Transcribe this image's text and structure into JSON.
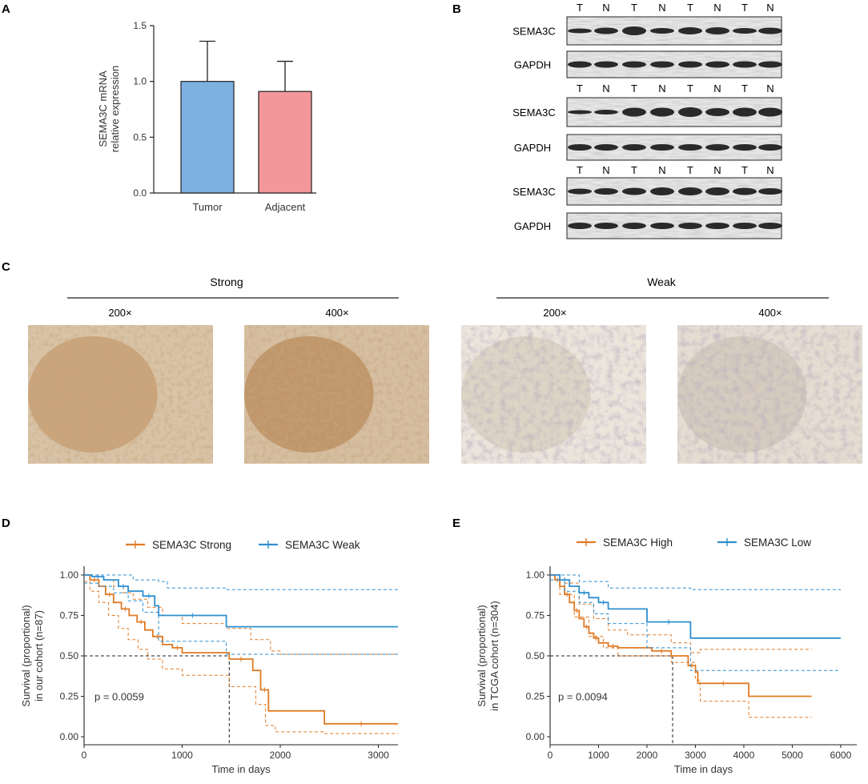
{
  "panels": {
    "a": "A",
    "b": "B",
    "c": "C",
    "d": "D",
    "e": "E"
  },
  "chart_data": [
    {
      "id": "A",
      "type": "bar",
      "categories": [
        "Tumor",
        "Adjacent"
      ],
      "values": [
        1.0,
        0.91
      ],
      "errors_upper": [
        1.36,
        1.18
      ],
      "colors": [
        "#7fb0e2",
        "#f4979b"
      ],
      "ylabel_line1": "SEMA3C mRNA",
      "ylabel_line2": "relative expression",
      "ylim": [
        0,
        1.5
      ],
      "yticks": [
        "0.0",
        "0.5",
        "1.0",
        "1.5"
      ]
    },
    {
      "id": "D",
      "type": "line",
      "legend": [
        "SEMA3C Strong",
        "SEMA3C Weak"
      ],
      "colors": [
        "#e07b26",
        "#2f8fd0"
      ],
      "xlabel": "Time in days",
      "ylabel_line1": "Survival (proportional)",
      "ylabel_line2": "in our cohort (n=87)",
      "xlim": [
        0,
        3200
      ],
      "ylim": [
        0,
        1
      ],
      "xticks": [
        "0",
        "1000",
        "2000",
        "3000"
      ],
      "yticks": [
        "0.00",
        "0.25",
        "0.50",
        "0.75",
        "1.00"
      ],
      "pvalue": "p = 0.0059",
      "median": 1480,
      "series": [
        {
          "name": "SEMA3C Strong",
          "x": [
            0,
            60,
            150,
            220,
            300,
            380,
            460,
            540,
            620,
            700,
            800,
            900,
            1000,
            1480,
            1720,
            1800,
            1880,
            2450,
            3200
          ],
          "y": [
            1.0,
            0.97,
            0.93,
            0.88,
            0.83,
            0.79,
            0.75,
            0.71,
            0.66,
            0.62,
            0.57,
            0.55,
            0.52,
            0.48,
            0.41,
            0.29,
            0.16,
            0.08,
            0.08
          ]
        },
        {
          "name": "SEMA3C Strong upper",
          "x": [
            0,
            100,
            200,
            300,
            400,
            500,
            650,
            800,
            1000,
            1450,
            1700,
            1900,
            2000,
            3200
          ],
          "y": [
            1.0,
            0.99,
            0.97,
            0.93,
            0.89,
            0.85,
            0.8,
            0.75,
            0.7,
            0.67,
            0.6,
            0.53,
            0.51,
            0.51
          ]
        },
        {
          "name": "SEMA3C Strong lower",
          "x": [
            0,
            60,
            150,
            250,
            350,
            450,
            550,
            650,
            800,
            1000,
            1480,
            1750,
            1850,
            1950,
            2450,
            3200
          ],
          "y": [
            0.96,
            0.9,
            0.83,
            0.75,
            0.67,
            0.6,
            0.54,
            0.48,
            0.42,
            0.38,
            0.31,
            0.2,
            0.07,
            0.03,
            0.02,
            0.02
          ]
        },
        {
          "name": "SEMA3C Weak",
          "x": [
            0,
            80,
            200,
            350,
            450,
            600,
            720,
            760,
            1450,
            3200
          ],
          "y": [
            1.0,
            0.99,
            0.97,
            0.93,
            0.9,
            0.87,
            0.81,
            0.75,
            0.68,
            0.68
          ]
        },
        {
          "name": "SEMA3C Weak upper",
          "x": [
            0,
            250,
            500,
            760,
            850,
            1450,
            3200
          ],
          "y": [
            1.0,
            1.0,
            0.97,
            0.96,
            0.92,
            0.91,
            0.91
          ]
        },
        {
          "name": "SEMA3C Weak lower",
          "x": [
            0,
            150,
            300,
            450,
            600,
            760,
            1450,
            3200
          ],
          "y": [
            0.95,
            0.93,
            0.89,
            0.84,
            0.77,
            0.59,
            0.51,
            0.51
          ]
        }
      ]
    },
    {
      "id": "E",
      "type": "line",
      "legend": [
        "SEMA3C High",
        "SEMA3C Low"
      ],
      "colors": [
        "#e07b26",
        "#2f8fd0"
      ],
      "xlabel": "Time in days",
      "ylabel_line1": "Survival (proportional)",
      "ylabel_line2": "in TCGA cohort (n=304)",
      "xlim": [
        0,
        6200
      ],
      "ylim": [
        0,
        1
      ],
      "xticks": [
        "0",
        "1000",
        "2000",
        "3000",
        "4000",
        "5000",
        "6000"
      ],
      "yticks": [
        "0.00",
        "0.25",
        "0.50",
        "0.75",
        "1.00"
      ],
      "pvalue": "p = 0.0094",
      "median": 2530,
      "series": [
        {
          "name": "SEMA3C High",
          "x": [
            0,
            100,
            200,
            300,
            400,
            500,
            600,
            700,
            800,
            900,
            1000,
            1200,
            1400,
            2100,
            2500,
            2850,
            3000,
            3050,
            4100,
            5400
          ],
          "y": [
            1.0,
            0.97,
            0.93,
            0.88,
            0.83,
            0.78,
            0.73,
            0.68,
            0.64,
            0.61,
            0.58,
            0.56,
            0.55,
            0.53,
            0.5,
            0.44,
            0.4,
            0.33,
            0.25,
            0.25
          ]
        },
        {
          "name": "SEMA3C High upper",
          "x": [
            0,
            300,
            600,
            900,
            1200,
            1600,
            2500,
            2900,
            3100,
            5400
          ],
          "y": [
            1.0,
            0.95,
            0.82,
            0.73,
            0.66,
            0.63,
            0.58,
            0.52,
            0.54,
            0.54
          ]
        },
        {
          "name": "SEMA3C High lower",
          "x": [
            0,
            200,
            500,
            800,
            1100,
            1400,
            2500,
            3000,
            3100,
            4100,
            5400
          ],
          "y": [
            0.97,
            0.88,
            0.74,
            0.62,
            0.55,
            0.5,
            0.46,
            0.35,
            0.22,
            0.12,
            0.12
          ]
        },
        {
          "name": "SEMA3C Low",
          "x": [
            0,
            200,
            400,
            600,
            800,
            1000,
            1200,
            2000,
            2900,
            6000
          ],
          "y": [
            1.0,
            0.97,
            0.93,
            0.89,
            0.86,
            0.83,
            0.79,
            0.71,
            0.61,
            0.61
          ]
        },
        {
          "name": "SEMA3C Low upper",
          "x": [
            0,
            600,
            1200,
            2000,
            2900,
            6000
          ],
          "y": [
            1.0,
            0.96,
            0.92,
            0.92,
            0.91,
            0.91
          ]
        },
        {
          "name": "SEMA3C Low lower",
          "x": [
            0,
            300,
            600,
            900,
            1200,
            2000,
            2900,
            6000
          ],
          "y": [
            0.97,
            0.9,
            0.83,
            0.76,
            0.7,
            0.55,
            0.41,
            0.41
          ]
        }
      ]
    }
  ],
  "western_blot": {
    "rows": [
      {
        "lanes": [
          "T",
          "N",
          "T",
          "N",
          "T",
          "N",
          "T",
          "N"
        ],
        "bands": [
          "SEMA3C",
          "GAPDH"
        ]
      },
      {
        "lanes": [
          "T",
          "N",
          "T",
          "N",
          "T",
          "N",
          "T",
          "N"
        ],
        "bands": [
          "SEMA3C",
          "GAPDH"
        ]
      },
      {
        "lanes": [
          "T",
          "N",
          "T",
          "N",
          "T",
          "N",
          "T",
          "N"
        ],
        "bands": [
          "SEMA3C",
          "GAPDH"
        ]
      }
    ]
  },
  "ihc": {
    "groups": [
      {
        "label": "Strong",
        "magnifications": [
          "200×",
          "400×"
        ]
      },
      {
        "label": "Weak",
        "magnifications": [
          "200×",
          "400×"
        ]
      }
    ]
  }
}
